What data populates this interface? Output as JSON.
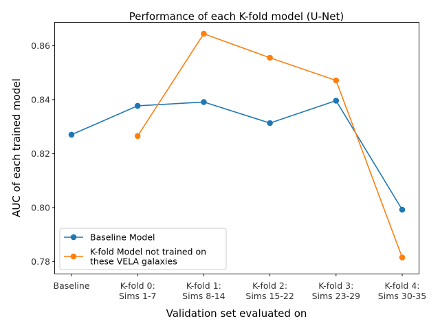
{
  "chart_data": {
    "type": "line",
    "title": "Performance of each K-fold model (U-Net)",
    "xlabel": "Validation set evaluated on",
    "ylabel": "AUC of each trained model",
    "categories": [
      [
        "Baseline"
      ],
      [
        "K-fold 0:",
        "Sims 1-7"
      ],
      [
        "K-fold 1:",
        "Sims 8-14"
      ],
      [
        "K-fold 2:",
        "Sims 15-22"
      ],
      [
        "K-fold 3:",
        "Sims 23-29"
      ],
      [
        "K-fold 4:",
        "Sims 30-35"
      ]
    ],
    "ylim": [
      0.7755,
      0.8685
    ],
    "yticks": [
      0.78,
      0.8,
      0.82,
      0.84,
      0.86
    ],
    "ytick_labels": [
      "0.78",
      "0.80",
      "0.82",
      "0.84",
      "0.86"
    ],
    "grid": false,
    "legend_position": "lower-left",
    "series": [
      {
        "name": "Baseline Model",
        "name_lines": [
          "Baseline Model"
        ],
        "color": "#1f77b4",
        "marker": "circle",
        "values": [
          0.827,
          0.8377,
          0.8391,
          0.8313,
          0.8396,
          0.7992
        ]
      },
      {
        "name": "K-fold Model not trained on these VELA galaxies",
        "name_lines": [
          "K-fold Model not trained on",
          "these VELA galaxies"
        ],
        "color": "#ff7f0e",
        "marker": "circle",
        "values": [
          null,
          0.8265,
          0.8644,
          0.8555,
          0.8471,
          0.7815
        ]
      }
    ]
  }
}
